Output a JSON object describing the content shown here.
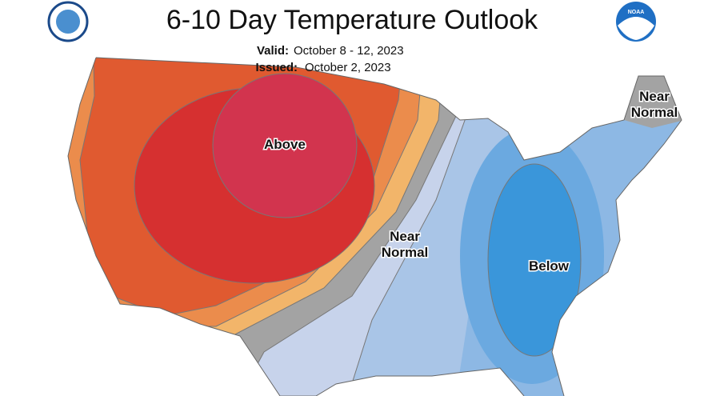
{
  "header": {
    "title": "6-10 Day Temperature Outlook",
    "valid_label": "Valid:",
    "valid_dates": "October 8 - 12, 2023",
    "issued_label": "Issued:",
    "issued_date": "October 2, 2023"
  },
  "logos": {
    "noaa": "NOAA"
  },
  "map": {
    "labels": [
      {
        "lines": [
          "Above"
        ]
      },
      {
        "lines": [
          "Near",
          "Normal"
        ]
      },
      {
        "lines": [
          "Below"
        ]
      },
      {
        "lines": [
          "Near",
          "Normal"
        ]
      }
    ]
  }
}
